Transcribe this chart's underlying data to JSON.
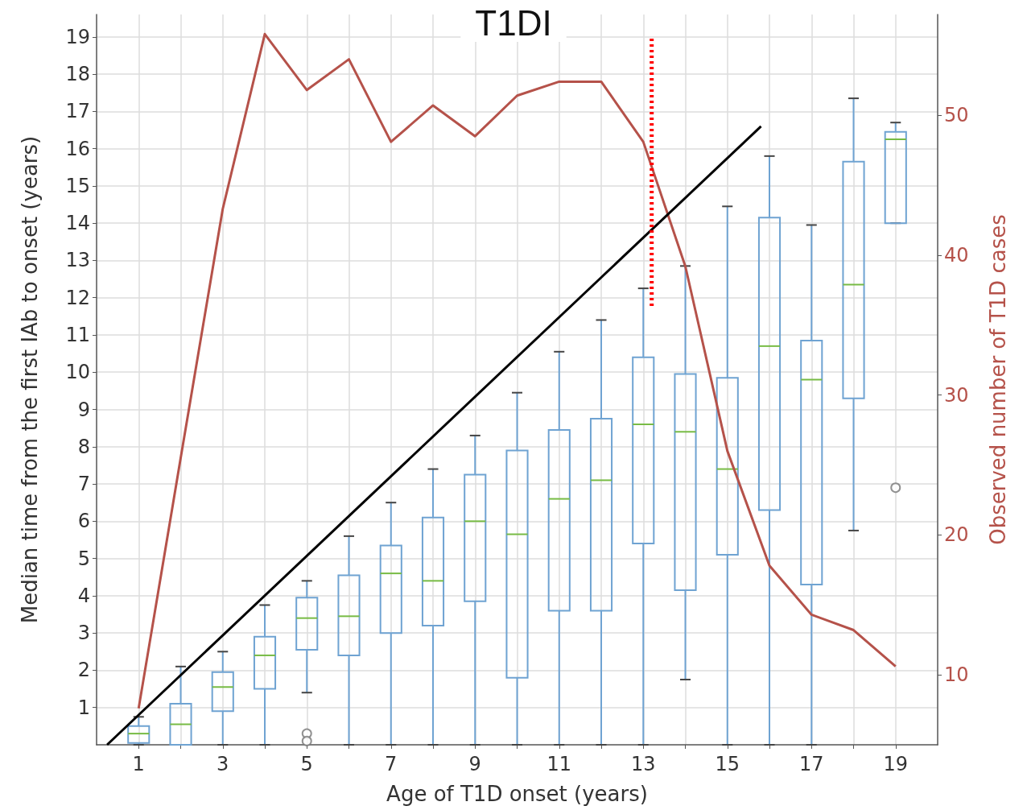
{
  "chart_data": {
    "type": "box",
    "title": "T1DI",
    "xlabel": "Age of T1D onset (years)",
    "ylabel": "Median time from the first IAb to onset (years)",
    "y2label": "Observed number of T1D cases",
    "x": [
      1,
      2,
      3,
      4,
      5,
      6,
      7,
      8,
      9,
      10,
      11,
      12,
      13,
      14,
      15,
      16,
      17,
      18,
      19
    ],
    "xlim": [
      0,
      20
    ],
    "xticks": [
      1,
      {
        "value": 2,
        "label": null
      },
      3,
      {
        "value": 4,
        "label": null
      },
      5,
      {
        "value": 6,
        "label": null
      },
      7,
      {
        "value": 8,
        "label": null
      },
      9,
      {
        "value": 10,
        "label": null
      },
      11,
      {
        "value": 12,
        "label": null
      },
      13,
      {
        "value": 14,
        "label": null
      },
      15,
      {
        "value": 16,
        "label": null
      },
      17,
      {
        "value": 18,
        "label": null
      },
      19
    ],
    "ylim": [
      0,
      19.6
    ],
    "yticks": [
      1,
      2,
      3,
      4,
      5,
      6,
      7,
      8,
      9,
      10,
      11,
      12,
      13,
      14,
      15,
      16,
      17,
      18,
      19
    ],
    "y2lim": [
      5,
      57.2
    ],
    "y2ticks": [
      10,
      20,
      30,
      40,
      50
    ],
    "grid": true,
    "marker": "none",
    "series": [
      {
        "color": "#6fa3d2",
        "boxes": [
          {
            "low": 0,
            "q1": 0.05,
            "median": 0.3,
            "q3": 0.5,
            "high": 0.75
          },
          {
            "low": 0,
            "q1": 0,
            "median": 0.55,
            "q3": 1.1,
            "high": 2.1
          },
          {
            "low": 0,
            "q1": 0.9,
            "median": 1.55,
            "q3": 1.95,
            "high": 2.5
          },
          {
            "low": 0,
            "q1": 1.5,
            "median": 2.4,
            "q3": 2.9,
            "high": 3.75
          },
          {
            "low": 1.4,
            "q1": 2.55,
            "median": 3.4,
            "q3": 3.95,
            "high": 4.4,
            "outliers": [
              0.3,
              0.1
            ]
          },
          {
            "low": 0,
            "q1": 2.4,
            "median": 3.45,
            "q3": 4.55,
            "high": 5.6
          },
          {
            "low": 0,
            "q1": 3.0,
            "median": 4.6,
            "q3": 5.35,
            "high": 6.5
          },
          {
            "low": 0,
            "q1": 3.2,
            "median": 4.4,
            "q3": 6.1,
            "high": 7.4
          },
          {
            "low": 0,
            "q1": 3.85,
            "median": 6.0,
            "q3": 7.25,
            "high": 8.3
          },
          {
            "low": 0,
            "q1": 1.8,
            "median": 5.65,
            "q3": 7.9,
            "high": 9.45
          },
          {
            "low": 0,
            "q1": 3.6,
            "median": 6.6,
            "q3": 8.45,
            "high": 10.55
          },
          {
            "low": 0,
            "q1": 3.6,
            "median": 7.1,
            "q3": 8.75,
            "high": 11.4
          },
          {
            "low": 0,
            "q1": 5.4,
            "median": 8.6,
            "q3": 10.4,
            "high": 12.25
          },
          {
            "low": 1.75,
            "q1": 4.15,
            "median": 8.4,
            "q3": 9.95,
            "high": 12.85
          },
          {
            "low": 0,
            "q1": 5.1,
            "median": 7.4,
            "q3": 9.85,
            "high": 14.45
          },
          {
            "low": 0,
            "q1": 6.3,
            "median": 10.7,
            "q3": 14.15,
            "high": 15.8
          },
          {
            "low": 0,
            "q1": 4.3,
            "median": 9.8,
            "q3": 10.85,
            "high": 13.95
          },
          {
            "low": 5.75,
            "q1": 9.3,
            "median": 12.35,
            "q3": 15.65,
            "high": 17.35
          },
          {
            "low": 14.0,
            "q1": 14.0,
            "median": 16.25,
            "q3": 16.45,
            "high": 16.7,
            "outliers": [
              6.9
            ]
          }
        ]
      },
      {
        "type": "line",
        "axis": "y2",
        "color": "#b5524a",
        "values": [
          7.6,
          25.5,
          43.3,
          55.8,
          51.8,
          54.0,
          48.1,
          50.7,
          48.5,
          51.4,
          52.4,
          52.4,
          48.1,
          39.2,
          26.0,
          17.8,
          14.3,
          13.2,
          10.6
        ]
      },
      {
        "type": "line",
        "color": "#000000",
        "x": [
          0.25,
          15.8
        ],
        "values": [
          0,
          16.6
        ]
      },
      {
        "type": "line",
        "color": "#ff0000",
        "line_style": "dotted",
        "x": [
          13.2,
          13.2
        ],
        "values": [
          18.95,
          11.75
        ]
      }
    ]
  }
}
